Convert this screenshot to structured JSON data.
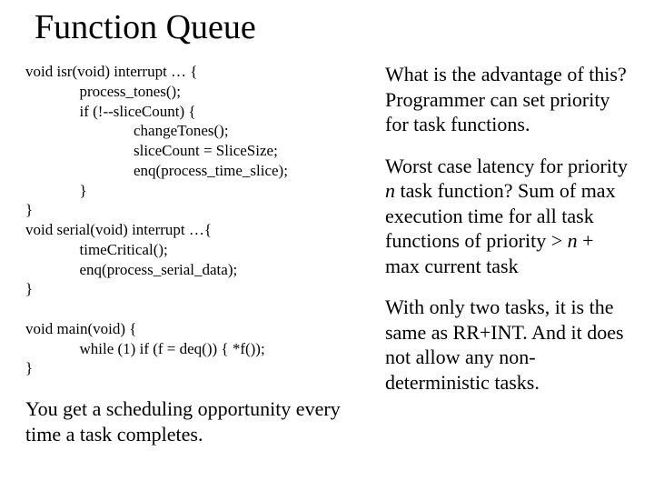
{
  "title": "Function Queue",
  "code": {
    "l1": "void isr(void) interrupt … {",
    "l2": "              process_tones();",
    "l3": "              if (!--sliceCount) {",
    "l4": "                            changeTones();",
    "l5": "                            sliceCount = SliceSize;",
    "l6": "                            enq(process_time_slice);",
    "l7": "              }",
    "l8": "}",
    "l9": "void serial(void) interrupt …{",
    "l10": "              timeCritical();",
    "l11": "              enq(process_serial_data);",
    "l12": "}",
    "l13": "",
    "l14": "void main(void) {",
    "l15": "              while (1) if (f = deq()) { *f()); ",
    "l16": "}"
  },
  "left_note": "You get a scheduling opportunity every time a task completes.",
  "right": {
    "p1": "What is the advantage of this? Programmer can set priority for task functions.",
    "p2a": "Worst case latency for priority ",
    "p2n1": "n",
    "p2b": " task function? Sum of max execution time for all task functions of priority > ",
    "p2n2": "n",
    "p2c": " + max current task",
    "p3": "With only two tasks, it is the same as RR+INT. And it does not allow any non-deterministic tasks."
  }
}
